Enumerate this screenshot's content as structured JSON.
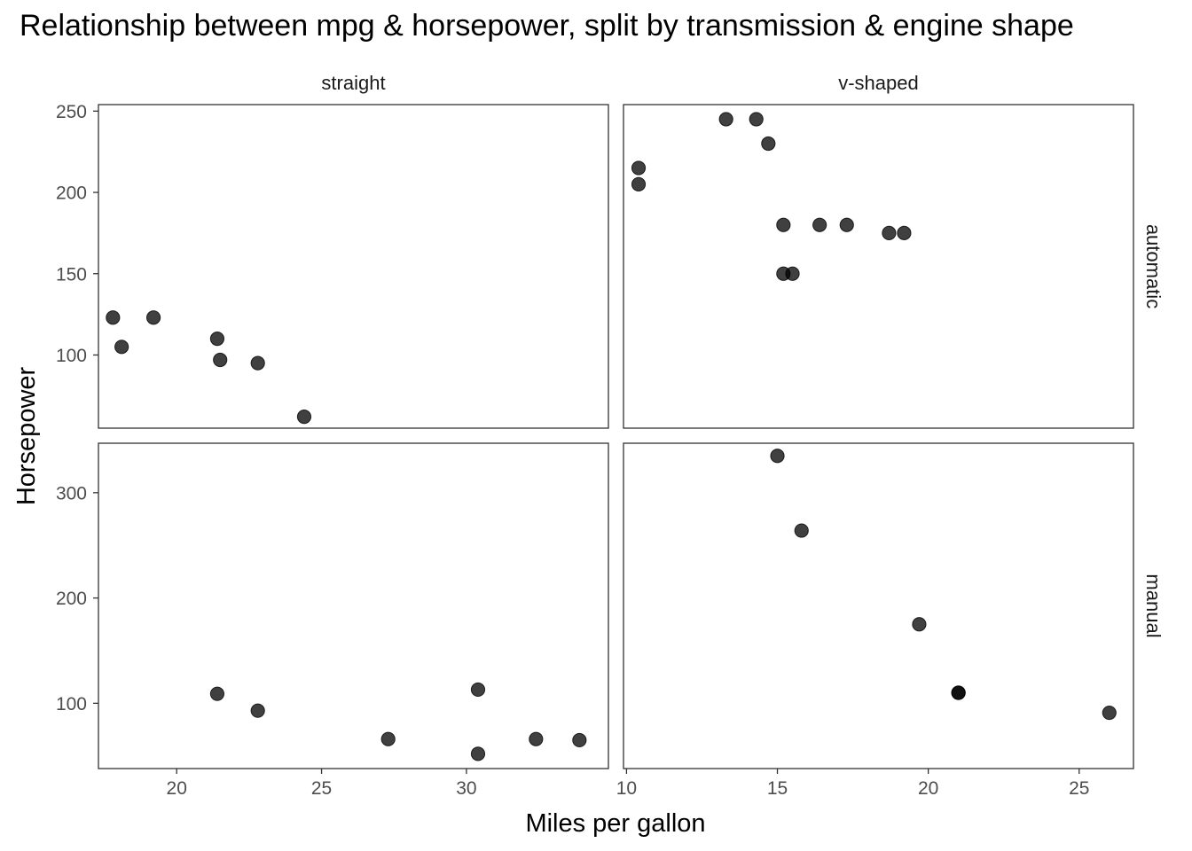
{
  "title": "Relationship between mpg & horsepower, split by transmission & engine shape",
  "chart_data": {
    "type": "scatter",
    "title": "Relationship between mpg & horsepower, split by transmission & engine shape",
    "xlabel": "Miles per gallon",
    "ylabel": "Horsepower",
    "grid": false,
    "facet_columns": [
      "straight",
      "v-shaped"
    ],
    "facet_rows": [
      "automatic",
      "manual"
    ],
    "x_scales": [
      {
        "column": "straight",
        "xlim": [
          17.3,
          34.9
        ],
        "ticks": [
          20,
          25,
          30
        ]
      },
      {
        "column": "v-shaped",
        "xlim": [
          9.9,
          26.8
        ],
        "ticks": [
          10,
          15,
          20,
          25
        ]
      }
    ],
    "y_scales": [
      {
        "row": "automatic",
        "ylim": [
          55,
          254
        ],
        "ticks": [
          100,
          150,
          200,
          250
        ]
      },
      {
        "row": "manual",
        "ylim": [
          38,
          347
        ],
        "ticks": [
          100,
          200,
          300
        ]
      }
    ],
    "panels": [
      {
        "column": "straight",
        "row": "automatic",
        "points": [
          [
            17.8,
            123
          ],
          [
            18.1,
            105
          ],
          [
            19.2,
            123
          ],
          [
            21.4,
            110
          ],
          [
            21.5,
            97
          ],
          [
            22.8,
            95
          ],
          [
            24.4,
            62
          ]
        ]
      },
      {
        "column": "v-shaped",
        "row": "automatic",
        "points": [
          [
            10.4,
            215
          ],
          [
            10.4,
            205
          ],
          [
            13.3,
            245
          ],
          [
            14.3,
            245
          ],
          [
            14.7,
            230
          ],
          [
            15.2,
            180
          ],
          [
            15.2,
            150
          ],
          [
            15.5,
            150
          ],
          [
            16.4,
            180
          ],
          [
            17.3,
            180
          ],
          [
            18.7,
            175
          ],
          [
            19.2,
            175
          ]
        ]
      },
      {
        "column": "straight",
        "row": "manual",
        "points": [
          [
            21.4,
            109
          ],
          [
            22.8,
            93
          ],
          [
            27.3,
            66
          ],
          [
            30.4,
            113
          ],
          [
            30.4,
            52
          ],
          [
            32.4,
            66
          ],
          [
            33.9,
            65
          ]
        ]
      },
      {
        "column": "v-shaped",
        "row": "manual",
        "points": [
          [
            15.0,
            335
          ],
          [
            15.8,
            264
          ],
          [
            19.7,
            175
          ],
          [
            21.0,
            110
          ],
          [
            21.0,
            110
          ],
          [
            26.0,
            91
          ]
        ]
      }
    ]
  }
}
